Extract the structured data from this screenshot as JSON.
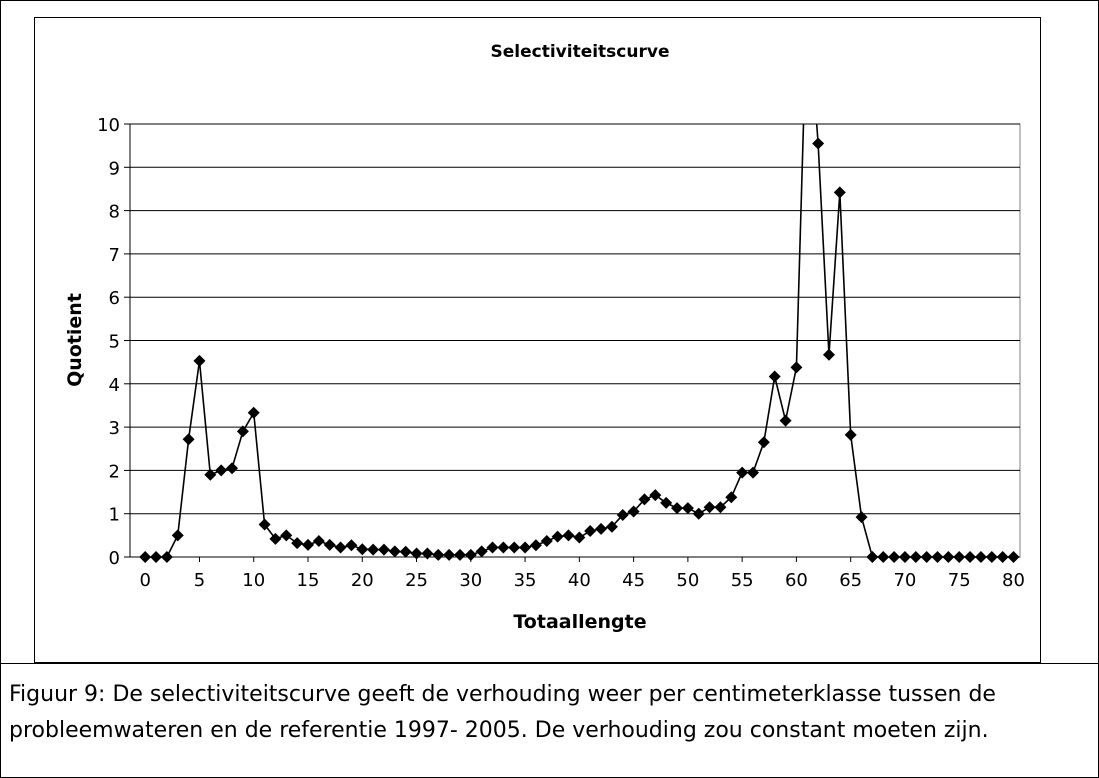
{
  "chart_data": {
    "type": "line",
    "title": "Selectiviteitscurve",
    "x_label": "Totaallengte",
    "y_label": "Quotient",
    "x": [
      0,
      1,
      2,
      3,
      4,
      5,
      6,
      7,
      8,
      9,
      10,
      11,
      12,
      13,
      14,
      15,
      16,
      17,
      18,
      19,
      20,
      21,
      22,
      23,
      24,
      25,
      26,
      27,
      28,
      29,
      30,
      31,
      32,
      33,
      34,
      35,
      36,
      37,
      38,
      39,
      40,
      41,
      42,
      43,
      44,
      45,
      46,
      47,
      48,
      49,
      50,
      51,
      52,
      53,
      54,
      55,
      56,
      57,
      58,
      59,
      60,
      61,
      62,
      63,
      64,
      65,
      66,
      67,
      68,
      69,
      70,
      71,
      72,
      73,
      74,
      75,
      76,
      77,
      78,
      79,
      80
    ],
    "series": [
      {
        "color": "#000000",
        "values": [
          0,
          0,
          0,
          0.5,
          2.72,
          4.53,
          1.9,
          2,
          2.05,
          2.9,
          3.33,
          0.75,
          0.42,
          0.5,
          0.32,
          0.28,
          0.37,
          0.28,
          0.22,
          0.27,
          0.18,
          0.17,
          0.17,
          0.13,
          0.12,
          0.08,
          0.08,
          0.05,
          0.05,
          0.05,
          0.05,
          0.13,
          0.22,
          0.22,
          0.22,
          0.22,
          0.27,
          0.37,
          0.47,
          0.5,
          0.45,
          0.6,
          0.65,
          0.7,
          0.97,
          1.05,
          1.33,
          1.43,
          1.25,
          1.13,
          1.13,
          1.0,
          1.15,
          1.15,
          1.38,
          1.95,
          1.95,
          2.65,
          4.17,
          3.15,
          4.38,
          13,
          9.55,
          4.67,
          8.42,
          2.82,
          0.92,
          0,
          0,
          0,
          0,
          0,
          0,
          0,
          0,
          0,
          0,
          0,
          0,
          0,
          0
        ]
      }
    ],
    "xlim": [
      -1.4,
      80.6
    ],
    "xticks": [
      0,
      5,
      10,
      15,
      20,
      25,
      30,
      35,
      40,
      45,
      50,
      55,
      60,
      65,
      70,
      75,
      80
    ],
    "ylim": [
      0,
      10
    ],
    "yticks": [
      0,
      1,
      2,
      3,
      4,
      5,
      6,
      7,
      8,
      9,
      10
    ],
    "grid": true
  },
  "caption": "Figuur 9: De selectiviteitscurve geeft de verhouding weer per centimeterklasse tussen de probleemwateren en de referentie 1997- 2005. De verhouding zou constant moeten zijn."
}
